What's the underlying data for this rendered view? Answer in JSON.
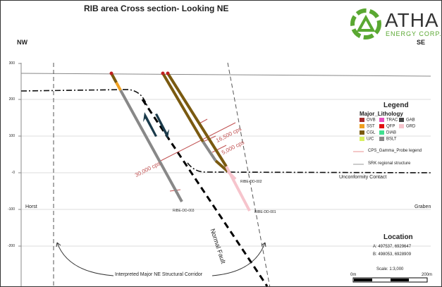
{
  "title": "RIB area Cross section- Looking NE",
  "logo": {
    "name": "ATHA",
    "sub": "ENERGY CORP.",
    "color": "#5aa832"
  },
  "directions": {
    "left": "NW",
    "right": "SE"
  },
  "y_axis": {
    "ticks": [
      "300",
      "200",
      "100",
      "-0",
      "-100",
      "-200"
    ]
  },
  "labels": {
    "horst": "Horst",
    "graben": "Graben",
    "unconformity": "Unconformity Contact",
    "fault": "Normal Fault",
    "corridor": "Interpreted Major NE Structural Corridor"
  },
  "drillholes": [
    {
      "name": "RIBE-DD-003"
    },
    {
      "name": "RIBE-DD-002"
    },
    {
      "name": "RIBE-DD-001"
    }
  ],
  "gamma": [
    "30,000 cps",
    "16,500 cps",
    "5,000 cps"
  ],
  "legend": {
    "title": "Legend",
    "subtitle": "Major_Lithology",
    "items": [
      {
        "code": "OVB",
        "color": "#a52a2a"
      },
      {
        "code": "TRAC",
        "color": "#e84fc0"
      },
      {
        "code": "GAB",
        "color": "#444444"
      },
      {
        "code": "SST",
        "color": "#f0a020"
      },
      {
        "code": "QFP",
        "color": "#e01010"
      },
      {
        "code": "GRD",
        "color": "#f6c4cc"
      },
      {
        "code": "CGL",
        "color": "#7a5a10"
      },
      {
        "code": "DIAB",
        "color": "#40e090"
      },
      {
        "code": "U/C",
        "color": "#d8f060"
      },
      {
        "code": "BSLT",
        "color": "#888888"
      }
    ],
    "lines": [
      {
        "label": "CPS_Gamma_Probe legend",
        "color": "#e89090"
      },
      {
        "label": "SRK regional structure",
        "color": "#999999"
      }
    ]
  },
  "location": {
    "title": "Location",
    "a": "A:  497537, 6929647",
    "b": "B:  498053, 6928909",
    "scale": "Scale: 1:3,000",
    "scale_start": "0m",
    "scale_end": "200m"
  }
}
